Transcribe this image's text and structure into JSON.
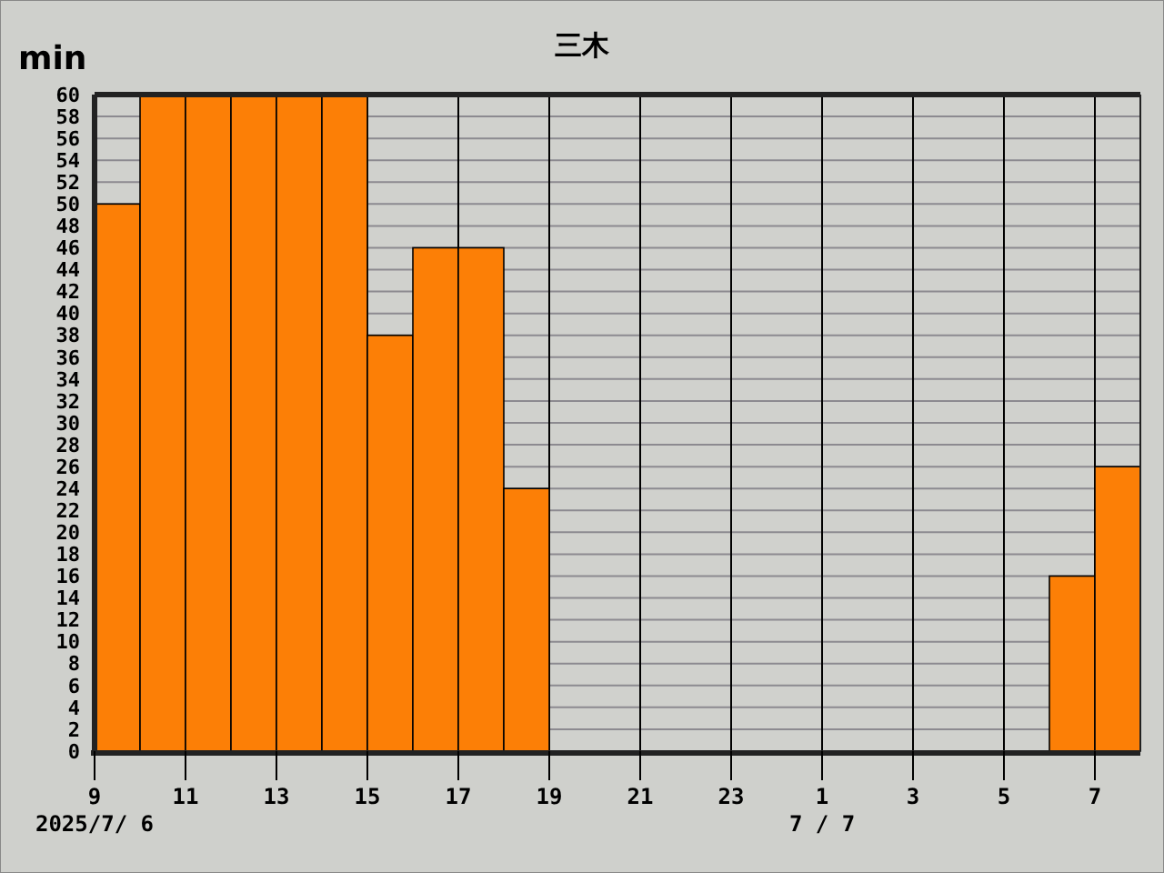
{
  "chart_data": {
    "type": "histogram",
    "title": "三木",
    "ylabel": "min",
    "bins": [
      "2025-07-06T09:00",
      "2025-07-06T10:00",
      "2025-07-06T11:00",
      "2025-07-06T12:00",
      "2025-07-06T13:00",
      "2025-07-06T14:00",
      "2025-07-06T15:00",
      "2025-07-06T16:00",
      "2025-07-06T17:00",
      "2025-07-06T18:00",
      "2025-07-06T19:00",
      "2025-07-06T20:00",
      "2025-07-06T21:00",
      "2025-07-06T22:00",
      "2025-07-06T23:00",
      "2025-07-07T00:00",
      "2025-07-07T01:00",
      "2025-07-07T02:00",
      "2025-07-07T03:00",
      "2025-07-07T04:00",
      "2025-07-07T05:00",
      "2025-07-07T06:00",
      "2025-07-07T07:00",
      "2025-07-07T08:00"
    ],
    "values": [
      50,
      60,
      60,
      60,
      60,
      60,
      38,
      46,
      46,
      24,
      0,
      0,
      0,
      0,
      0,
      0,
      0,
      0,
      0,
      0,
      0,
      16,
      26
    ],
    "color": "#fc7f06",
    "xlim": [
      "2025-07-06T09:00",
      "2025-07-07T08:00"
    ],
    "xticks": [
      {
        "value": "2025-07-06T09:00",
        "label": "9"
      },
      {
        "value": "2025-07-06T11:00",
        "label": "11"
      },
      {
        "value": "2025-07-06T13:00",
        "label": "13"
      },
      {
        "value": "2025-07-06T15:00",
        "label": "15"
      },
      {
        "value": "2025-07-06T17:00",
        "label": "17"
      },
      {
        "value": "2025-07-06T19:00",
        "label": "19"
      },
      {
        "value": "2025-07-06T21:00",
        "label": "21"
      },
      {
        "value": "2025-07-06T23:00",
        "label": "23"
      },
      {
        "value": "2025-07-07T01:00",
        "label": "1"
      },
      {
        "value": "2025-07-07T03:00",
        "label": "3"
      },
      {
        "value": "2025-07-07T05:00",
        "label": "5"
      },
      {
        "value": "2025-07-07T07:00",
        "label": "7"
      }
    ],
    "ylim": [
      0,
      60
    ],
    "yticks": [
      0,
      2,
      4,
      6,
      8,
      10,
      12,
      14,
      16,
      18,
      20,
      22,
      24,
      26,
      28,
      30,
      32,
      34,
      36,
      38,
      40,
      42,
      44,
      46,
      48,
      50,
      52,
      54,
      56,
      58,
      60
    ],
    "grid": true,
    "annotations": [
      "2025/7/ 6",
      "7 / 7"
    ]
  }
}
